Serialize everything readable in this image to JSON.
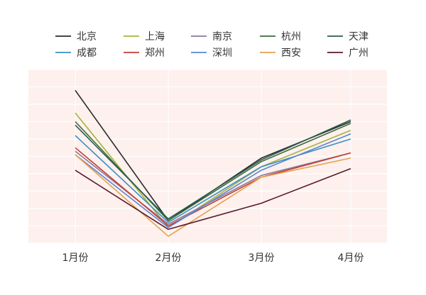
{
  "chart_data": {
    "type": "line",
    "categories": [
      "1月份",
      "2月份",
      "3月份",
      "4月份"
    ],
    "ylim": [
      0,
      100
    ],
    "grid": true,
    "legend_position": "top",
    "plot_background": "#fdf0ed",
    "grid_color": "#ffffff",
    "series": [
      {
        "name": "北京",
        "color": "#2b2b2b",
        "values": [
          88,
          13,
          49,
          70
        ]
      },
      {
        "name": "上海",
        "color": "#a5b43c",
        "values": [
          75,
          9,
          44,
          65
        ]
      },
      {
        "name": "南京",
        "color": "#8a7a9b",
        "values": [
          53,
          11,
          39,
          52
        ]
      },
      {
        "name": "杭州",
        "color": "#3c6b3a",
        "values": [
          70,
          13,
          47,
          69
        ]
      },
      {
        "name": "天津",
        "color": "#275c52",
        "values": [
          68,
          14,
          48,
          71
        ]
      },
      {
        "name": "成都",
        "color": "#3a8fc4",
        "values": [
          62,
          12,
          44,
          60
        ]
      },
      {
        "name": "郑州",
        "color": "#c33d37",
        "values": [
          55,
          10,
          38,
          52
        ]
      },
      {
        "name": "深圳",
        "color": "#5c86d0",
        "values": [
          51,
          9,
          42,
          63
        ]
      },
      {
        "name": "西安",
        "color": "#e3a24c",
        "values": [
          51,
          4,
          38,
          49
        ]
      },
      {
        "name": "广州",
        "color": "#5a1a2c",
        "values": [
          42,
          8,
          23,
          43
        ]
      }
    ]
  }
}
